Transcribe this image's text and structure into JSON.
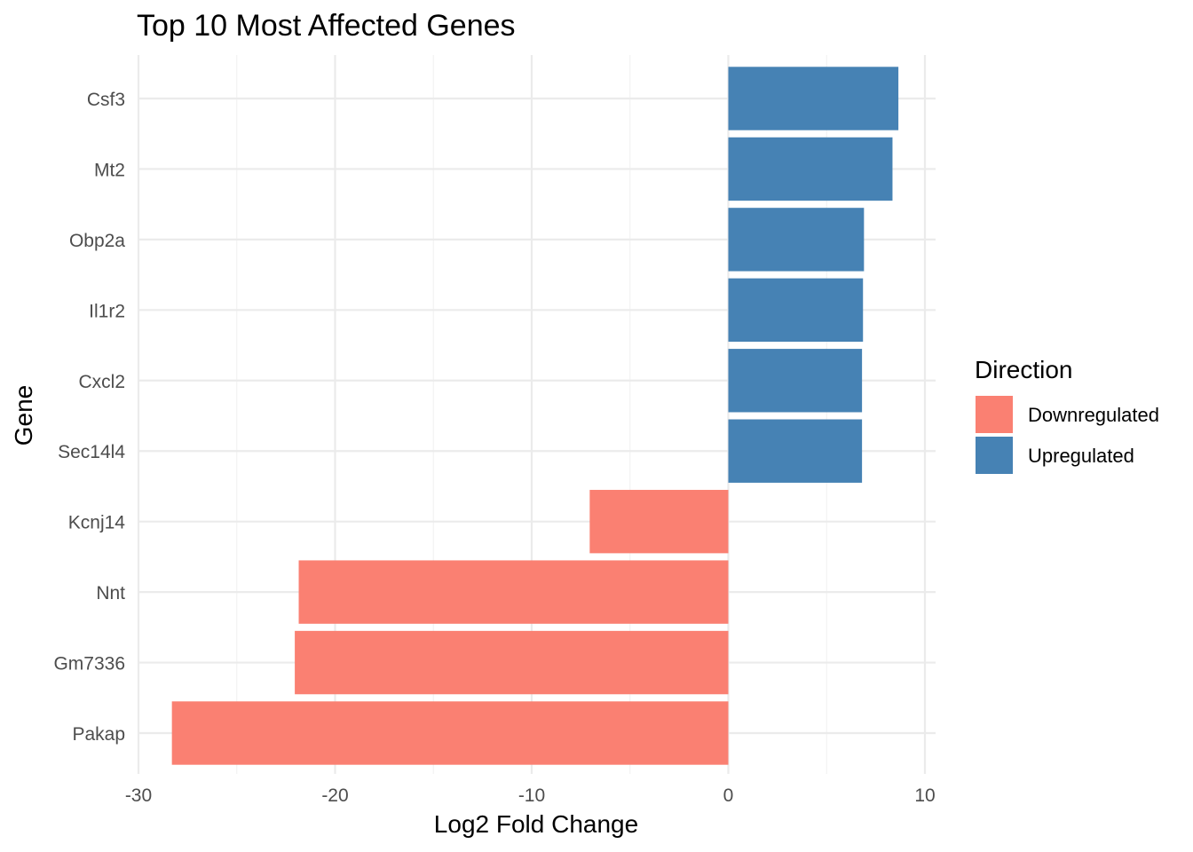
{
  "chart_data": {
    "type": "bar",
    "orientation": "horizontal",
    "title": "Top 10 Most Affected Genes",
    "xlabel": "Log2 Fold Change",
    "ylabel": "Gene",
    "xlim": [
      -30,
      10
    ],
    "x_ticks": [
      -30,
      -20,
      -10,
      0,
      10
    ],
    "x_tick_labels": [
      "-30",
      "-20",
      "-10",
      "0",
      "10"
    ],
    "grid": true,
    "categories": [
      "Csf3",
      "Mt2",
      "Obp2a",
      "Il1r2",
      "Cxcl2",
      "Sec14l4",
      "Kcnj14",
      "Nnt",
      "Gm7336",
      "Pakap"
    ],
    "values": [
      8.65,
      8.35,
      6.9,
      6.85,
      6.8,
      6.8,
      -7.05,
      -21.85,
      -22.05,
      -28.3
    ],
    "direction": [
      "Upregulated",
      "Upregulated",
      "Upregulated",
      "Upregulated",
      "Upregulated",
      "Upregulated",
      "Downregulated",
      "Downregulated",
      "Downregulated",
      "Downregulated"
    ],
    "legend": {
      "title": "Direction",
      "position": "right",
      "entries": [
        {
          "label": "Downregulated",
          "color": "#FA8072"
        },
        {
          "label": "Upregulated",
          "color": "#4682B4"
        }
      ]
    }
  }
}
